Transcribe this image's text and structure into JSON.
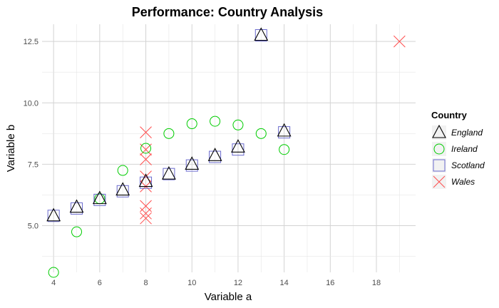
{
  "chart_data": {
    "type": "scatter",
    "title": "Performance: Country Analysis",
    "xlabel": "Variable a",
    "ylabel": "Variable b",
    "xlim": [
      3.5,
      19.7
    ],
    "ylim": [
      3.1,
      13.2
    ],
    "x_ticks": [
      4,
      6,
      8,
      10,
      12,
      14,
      16,
      18
    ],
    "y_ticks": [
      5.0,
      7.5,
      10.0,
      12.5
    ],
    "y_tick_labels": [
      "5.0",
      "7.5",
      "10.0",
      "12.5"
    ],
    "grid": true,
    "legend": {
      "title": "Country",
      "position": "right"
    },
    "series": [
      {
        "name": "England",
        "shape": "triangle",
        "color": "#000000",
        "points": [
          [
            4,
            5.4
          ],
          [
            5,
            5.75
          ],
          [
            6,
            6.1
          ],
          [
            7,
            6.45
          ],
          [
            8,
            6.8
          ],
          [
            9,
            7.1
          ],
          [
            10,
            7.5
          ],
          [
            11,
            7.85
          ],
          [
            12,
            8.2
          ],
          [
            13,
            12.75
          ],
          [
            14,
            8.85
          ]
        ]
      },
      {
        "name": "Ireland",
        "shape": "circle",
        "color": "#00cc00",
        "points": [
          [
            4,
            3.1
          ],
          [
            5,
            4.75
          ],
          [
            6,
            6.1
          ],
          [
            7,
            7.25
          ],
          [
            8,
            8.15
          ],
          [
            9,
            8.75
          ],
          [
            10,
            9.15
          ],
          [
            11,
            9.25
          ],
          [
            12,
            9.1
          ],
          [
            13,
            8.75
          ],
          [
            14,
            8.1
          ]
        ]
      },
      {
        "name": "Scotland",
        "shape": "square",
        "color": "#6a6acd",
        "points": [
          [
            4,
            5.4
          ],
          [
            5,
            5.7
          ],
          [
            6,
            6.05
          ],
          [
            7,
            6.4
          ],
          [
            8,
            6.75
          ],
          [
            9,
            7.1
          ],
          [
            10,
            7.45
          ],
          [
            11,
            7.8
          ],
          [
            12,
            8.1
          ],
          [
            13,
            12.75
          ],
          [
            14,
            8.8
          ]
        ]
      },
      {
        "name": "Wales",
        "shape": "x",
        "color": "#ff4d4d",
        "points": [
          [
            8,
            8.8
          ],
          [
            8,
            8.1
          ],
          [
            8,
            7.7
          ],
          [
            8,
            7.0
          ],
          [
            8,
            6.6
          ],
          [
            8,
            5.8
          ],
          [
            8,
            5.5
          ],
          [
            8,
            5.3
          ],
          [
            19,
            12.5
          ]
        ]
      }
    ]
  }
}
